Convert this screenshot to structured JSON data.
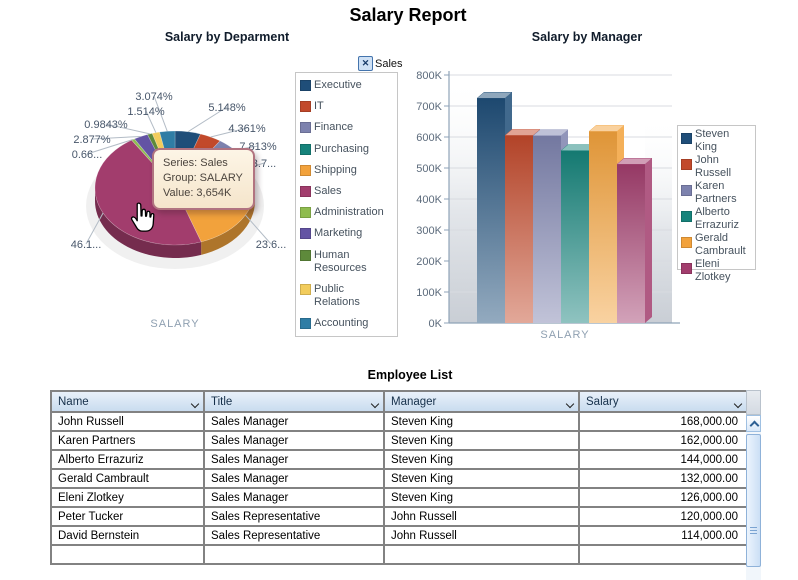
{
  "page": {
    "title": "Salary Report"
  },
  "filter_tag": {
    "label": "Sales",
    "icon": "close-icon"
  },
  "chart_data": [
    {
      "type": "pie",
      "title": "Salary by Deparment",
      "series_name": "Sales",
      "group_label": "SALARY",
      "slices": [
        {
          "label": "Executive",
          "percent": 5.148,
          "percent_label": "5.148%",
          "color": "#1F4E79"
        },
        {
          "label": "IT",
          "percent": 4.361,
          "percent_label": "4.361%",
          "color": "#C2492B"
        },
        {
          "label": "Finance",
          "percent": 7.813,
          "percent_label": "7.813%",
          "color": "#7D82AE"
        },
        {
          "label": "Purchasing",
          "percent": 3.7,
          "percent_label": "3.7...",
          "color": "#16837B"
        },
        {
          "label": "Shipping",
          "percent": 23.6,
          "percent_label": "23.6...",
          "color": "#F2A23C"
        },
        {
          "label": "Sales",
          "percent": 46.1,
          "percent_label": "46.1...",
          "color": "#A23D6D"
        },
        {
          "label": "Administration",
          "percent": 0.66,
          "percent_label": "0.66...",
          "color": "#8FBC4F"
        },
        {
          "label": "Marketing",
          "percent": 2.877,
          "percent_label": "2.877%",
          "color": "#6353A4"
        },
        {
          "label": "Human Resources",
          "percent": 0.9843,
          "percent_label": "0.9843%",
          "color": "#5E8A3B"
        },
        {
          "label": "Public Relations",
          "percent": 1.514,
          "percent_label": "1.514%",
          "color": "#F2CC5C"
        },
        {
          "label": "Accounting",
          "percent": 3.074,
          "percent_label": "3.074%",
          "color": "#2F7DA5"
        }
      ],
      "tooltip": {
        "series": "Series: Sales",
        "group": "Group: SALARY",
        "value": "Value: 3,654K"
      },
      "legend_position": "right"
    },
    {
      "type": "bar",
      "title": "Salary by Manager",
      "xlabel": "SALARY",
      "ylim": [
        0,
        800
      ],
      "ytick_labels": [
        "0K",
        "100K",
        "200K",
        "300K",
        "400K",
        "500K",
        "600K",
        "700K",
        "800K"
      ],
      "grid": true,
      "legend_position": "right",
      "categories": [
        "SALARY"
      ],
      "series": [
        {
          "name": "Steven King",
          "valueK": 725,
          "color": "#1F4E79"
        },
        {
          "name": "John Russell",
          "valueK": 605,
          "color": "#C2492B"
        },
        {
          "name": "Karen Partners",
          "valueK": 604,
          "color": "#7D82AE"
        },
        {
          "name": "Alberto Errazuriz",
          "valueK": 556,
          "color": "#16837B"
        },
        {
          "name": "Gerald Cambrault",
          "valueK": 618,
          "color": "#F2A23C"
        },
        {
          "name": "Eleni Zlotkey",
          "valueK": 512,
          "color": "#A23D6D"
        }
      ]
    }
  ],
  "table": {
    "title": "Employee List",
    "headers": [
      "Name",
      "Title",
      "Manager",
      "Salary"
    ],
    "rows": [
      [
        "John Russell",
        "Sales Manager",
        "Steven King",
        "168,000.00"
      ],
      [
        "Karen Partners",
        "Sales Manager",
        "Steven King",
        "162,000.00"
      ],
      [
        "Alberto Errazuriz",
        "Sales Manager",
        "Steven King",
        "144,000.00"
      ],
      [
        "Gerald Cambrault",
        "Sales Manager",
        "Steven King",
        "132,000.00"
      ],
      [
        "Eleni Zlotkey",
        "Sales Manager",
        "Steven King",
        "126,000.00"
      ],
      [
        "Peter Tucker",
        "Sales Representative",
        "John Russell",
        "120,000.00"
      ],
      [
        "David Bernstein",
        "Sales Representative",
        "John Russell",
        "114,000.00"
      ]
    ]
  }
}
